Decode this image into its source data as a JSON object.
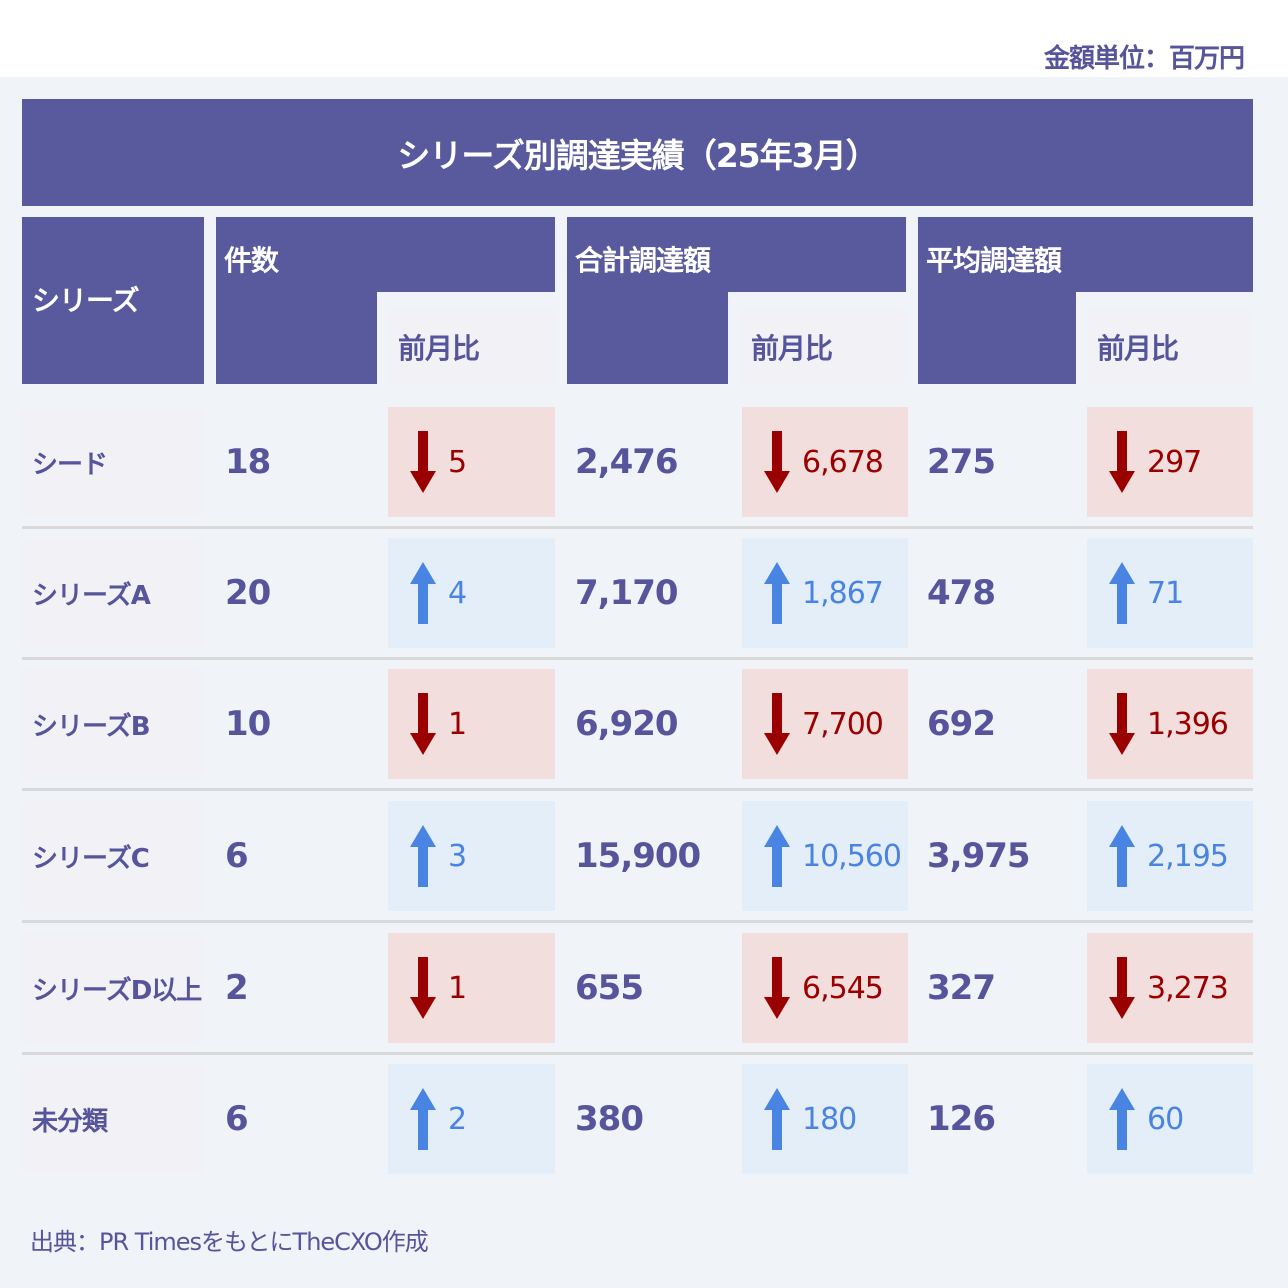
{
  "unit_label": "金額単位：百万円",
  "title": "シリーズ別調達実績（25年3月）",
  "headers": {
    "series": "シリーズ",
    "count": "件数",
    "total": "合計調達額",
    "average": "平均調達額",
    "mom": "前月比"
  },
  "colors": {
    "header_bg": "#59599e",
    "text": "#56559b",
    "down_bg": "#f2dedd",
    "down_fg": "#9a0000",
    "up_bg": "#e4eef9",
    "up_fg": "#4a84e2",
    "panel_bg": "#f0f4f8"
  },
  "rows": [
    {
      "series": "シード",
      "count": "18",
      "count_mom": "5",
      "count_dir": "down",
      "total": "2,476",
      "total_mom": "6,678",
      "total_dir": "down",
      "average": "275",
      "average_mom": "297",
      "average_dir": "down"
    },
    {
      "series": "シリーズA",
      "count": "20",
      "count_mom": "4",
      "count_dir": "up",
      "total": "7,170",
      "total_mom": "1,867",
      "total_dir": "up",
      "average": "478",
      "average_mom": "71",
      "average_dir": "up"
    },
    {
      "series": "シリーズB",
      "count": "10",
      "count_mom": "1",
      "count_dir": "down",
      "total": "6,920",
      "total_mom": "7,700",
      "total_dir": "down",
      "average": "692",
      "average_mom": "1,396",
      "average_dir": "down"
    },
    {
      "series": "シリーズC",
      "count": "6",
      "count_mom": "3",
      "count_dir": "up",
      "total": "15,900",
      "total_mom": "10,560",
      "total_dir": "up",
      "average": "3,975",
      "average_mom": "2,195",
      "average_dir": "up"
    },
    {
      "series": "シリーズD以上",
      "count": "2",
      "count_mom": "1",
      "count_dir": "down",
      "total": "655",
      "total_mom": "6,545",
      "total_dir": "down",
      "average": "327",
      "average_mom": "3,273",
      "average_dir": "down"
    },
    {
      "series": "未分類",
      "count": "6",
      "count_mom": "2",
      "count_dir": "up",
      "total": "380",
      "total_mom": "180",
      "total_dir": "up",
      "average": "126",
      "average_mom": "60",
      "average_dir": "up"
    }
  ],
  "icons": {
    "up": "arrow-up-icon",
    "down": "arrow-down-icon"
  },
  "source": "出典：PR TimesをもとにTheCXO作成"
}
